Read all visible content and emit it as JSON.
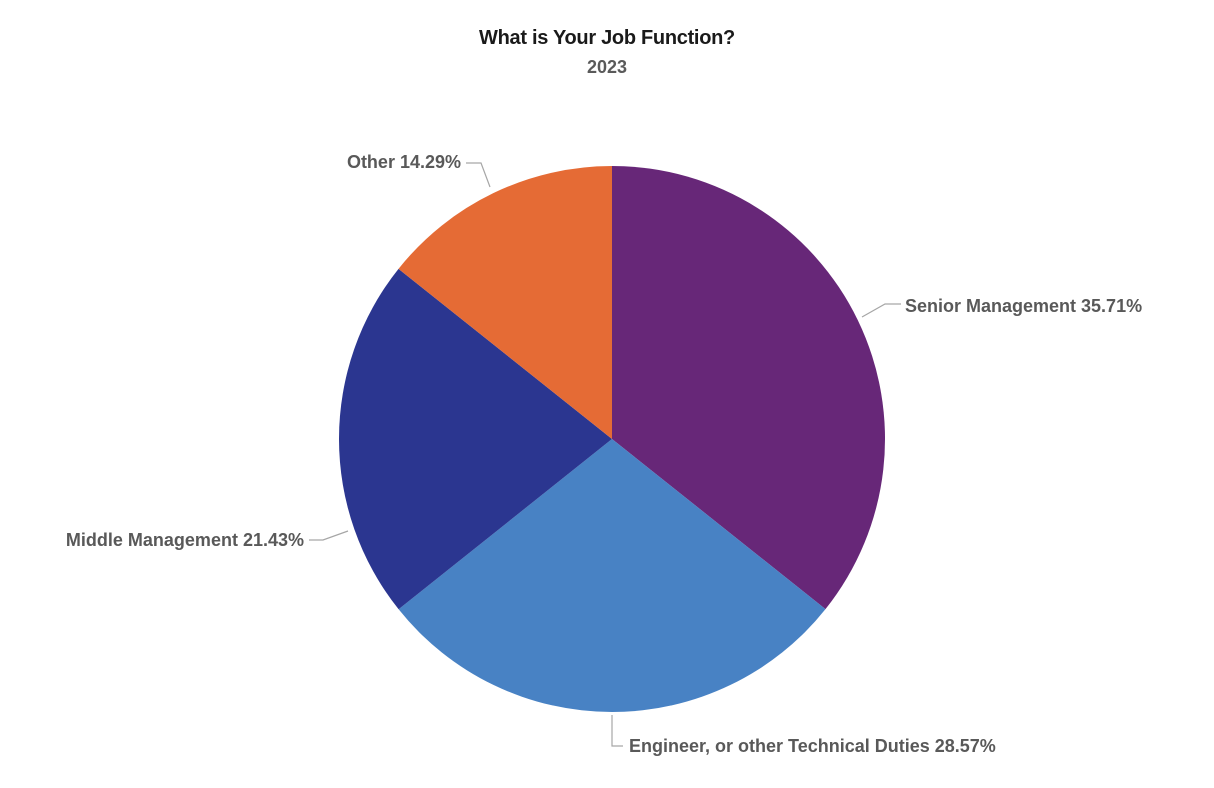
{
  "chart_data": {
    "type": "pie",
    "title": "What is Your Job Function?",
    "subtitle": "2023",
    "slices": [
      {
        "label": "Senior Management",
        "value": 35.71,
        "display": "Senior Management 35.71%",
        "color": "#672778"
      },
      {
        "label": "Engineer, or other Technical Duties",
        "value": 28.57,
        "display": "Engineer, or other Technical Duties 28.57%",
        "color": "#4882c4"
      },
      {
        "label": "Middle Management",
        "value": 21.43,
        "display": "Middle Management 21.43%",
        "color": "#2b3690"
      },
      {
        "label": "Other",
        "value": 14.29,
        "display": "Other 14.29%",
        "color": "#e56b35"
      }
    ],
    "start_angle": "12 o'clock",
    "direction": "clockwise",
    "label_position": "outside with leader lines",
    "legend": "none"
  }
}
